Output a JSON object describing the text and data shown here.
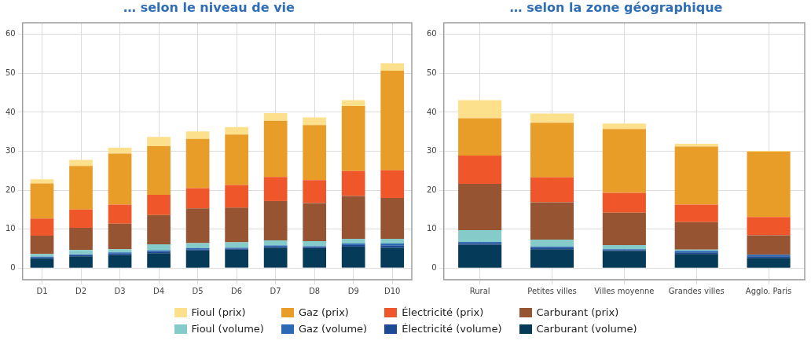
{
  "chart_data": [
    {
      "type": "bar",
      "stacked": true,
      "title": "… selon le niveau de vie",
      "categories": [
        "D1",
        "D2",
        "D3",
        "D4",
        "D5",
        "D6",
        "D7",
        "D8",
        "D9",
        "D10"
      ],
      "ylim": [
        -3,
        63
      ],
      "yticks": [
        0,
        10,
        20,
        30,
        40,
        50,
        60
      ],
      "grid": true,
      "legend": "bottom",
      "series": [
        {
          "name": "Carburant (volume)",
          "color": "#053a58",
          "values": [
            2.4,
            3.0,
            3.3,
            3.8,
            4.5,
            4.7,
            5.2,
            5.1,
            5.5,
            5.2
          ]
        },
        {
          "name": "Électricité (volume)",
          "color": "#1d4a94",
          "values": [
            0.3,
            0.3,
            0.4,
            0.4,
            0.3,
            0.3,
            0.3,
            0.3,
            0.4,
            0.6
          ]
        },
        {
          "name": "Gaz (volume)",
          "color": "#2d6ab5",
          "values": [
            0.2,
            0.2,
            0.3,
            0.3,
            0.3,
            0.2,
            0.3,
            0.2,
            0.4,
            0.5
          ]
        },
        {
          "name": "Fioul (volume)",
          "color": "#85cbca",
          "values": [
            0.7,
            1.1,
            0.8,
            1.6,
            1.3,
            1.4,
            1.3,
            1.3,
            1.2,
            1.2
          ]
        },
        {
          "name": "Carburant (prix)",
          "color": "#965432",
          "values": [
            4.7,
            5.7,
            6.6,
            7.5,
            8.9,
            8.9,
            10.1,
            9.8,
            11.0,
            10.5
          ]
        },
        {
          "name": "Électricité (prix)",
          "color": "#ef5629",
          "values": [
            4.4,
            4.7,
            4.9,
            5.2,
            5.2,
            5.8,
            6.2,
            5.9,
            6.4,
            7.1
          ]
        },
        {
          "name": "Gaz (prix)",
          "color": "#e79d27",
          "values": [
            9.0,
            11.2,
            13.1,
            12.5,
            12.7,
            13.0,
            14.4,
            14.1,
            16.7,
            25.6
          ]
        },
        {
          "name": "Fioul (prix)",
          "color": "#fde08b",
          "values": [
            1.1,
            1.6,
            1.5,
            2.4,
            1.9,
            1.9,
            2.0,
            2.0,
            1.5,
            1.9
          ]
        }
      ]
    },
    {
      "type": "bar",
      "stacked": true,
      "title": "… selon la zone géographique",
      "categories": [
        "Rural",
        "Petites villes",
        "Villes moyenne",
        "Grandes villes",
        "Agglo. Paris"
      ],
      "ylim": [
        -3,
        63
      ],
      "yticks": [
        0,
        10,
        20,
        30,
        40,
        50,
        60
      ],
      "grid": true,
      "legend": "bottom",
      "series": [
        {
          "name": "Carburant (volume)",
          "color": "#053a58",
          "values": [
            6.0,
            4.8,
            4.4,
            3.6,
            2.6
          ]
        },
        {
          "name": "Électricité (volume)",
          "color": "#1d4a94",
          "values": [
            0.4,
            0.4,
            0.2,
            0.4,
            0.4
          ]
        },
        {
          "name": "Gaz (volume)",
          "color": "#2d6ab5",
          "values": [
            0.3,
            0.3,
            0.2,
            0.4,
            0.4
          ]
        },
        {
          "name": "Fioul (volume)",
          "color": "#85cbca",
          "values": [
            3.0,
            1.8,
            1.1,
            0.3,
            null
          ]
        },
        {
          "name": "Carburant (prix)",
          "color": "#965432",
          "values": [
            11.9,
            9.6,
            8.3,
            7.1,
            5.0
          ]
        },
        {
          "name": "Électricité (prix)",
          "color": "#ef5629",
          "values": [
            7.3,
            6.4,
            5.1,
            4.5,
            4.7
          ]
        },
        {
          "name": "Gaz (prix)",
          "color": "#e79d27",
          "values": [
            9.6,
            14.0,
            16.4,
            14.9,
            16.8
          ]
        },
        {
          "name": "Fioul (prix)",
          "color": "#fde08b",
          "values": [
            4.6,
            2.4,
            1.4,
            0.7,
            0.2
          ]
        }
      ]
    }
  ]
}
